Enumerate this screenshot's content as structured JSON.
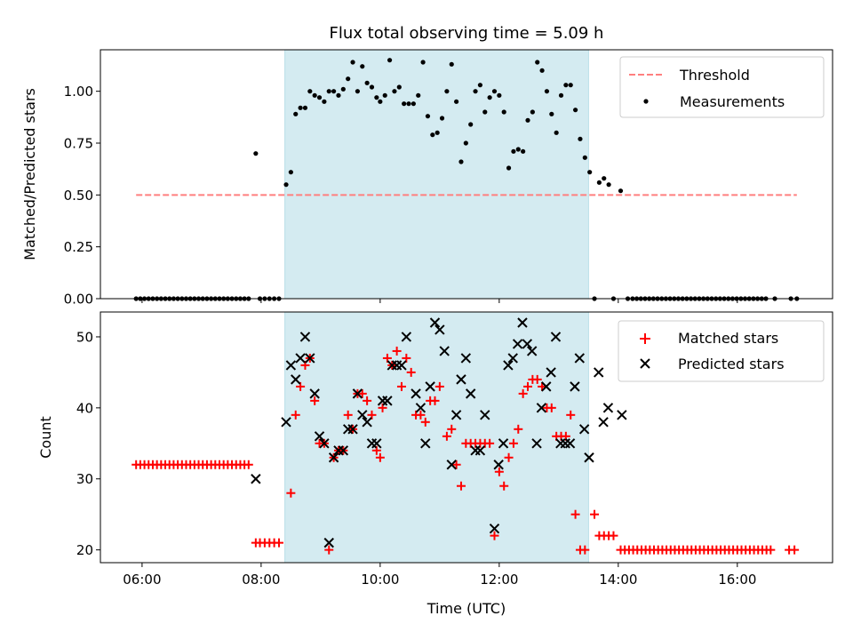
{
  "figure": {
    "title": "Flux total observing time = 5.09 h",
    "xlabel": "Time (UTC)",
    "x_ticks": [
      "06:00",
      "08:00",
      "10:00",
      "12:00",
      "14:00",
      "16:00"
    ],
    "x_tick_values": [
      6,
      8,
      10,
      12,
      14,
      16
    ],
    "x_range": [
      5.3,
      17.6
    ],
    "observing_window": [
      8.4,
      13.5
    ],
    "window_color": "#d4ebf1"
  },
  "chart_data": [
    {
      "type": "scatter",
      "ylabel": "Matched/Predicted stars",
      "ylim": [
        0,
        1.2
      ],
      "yticks": [
        "0.00",
        "0.25",
        "0.50",
        "0.75",
        "1.00"
      ],
      "ytick_values": [
        0,
        0.25,
        0.5,
        0.75,
        1.0
      ],
      "legend_position": "top-right",
      "legend": [
        {
          "label": "Threshold",
          "marker": "dashed-line",
          "color": "#ff7f7f"
        },
        {
          "label": "Measurements",
          "marker": "dot",
          "color": "#000000"
        }
      ],
      "threshold": {
        "y": 0.5,
        "x": [
          5.9,
          17.0
        ]
      },
      "measurements": [
        [
          5.9,
          0
        ],
        [
          5.97,
          0
        ],
        [
          6.04,
          0
        ],
        [
          6.11,
          0
        ],
        [
          6.18,
          0
        ],
        [
          6.25,
          0
        ],
        [
          6.32,
          0
        ],
        [
          6.39,
          0
        ],
        [
          6.46,
          0
        ],
        [
          6.53,
          0
        ],
        [
          6.6,
          0
        ],
        [
          6.67,
          0
        ],
        [
          6.74,
          0
        ],
        [
          6.81,
          0
        ],
        [
          6.88,
          0
        ],
        [
          6.95,
          0
        ],
        [
          7.02,
          0
        ],
        [
          7.09,
          0
        ],
        [
          7.16,
          0
        ],
        [
          7.23,
          0
        ],
        [
          7.3,
          0
        ],
        [
          7.37,
          0
        ],
        [
          7.44,
          0
        ],
        [
          7.51,
          0
        ],
        [
          7.58,
          0
        ],
        [
          7.65,
          0
        ],
        [
          7.72,
          0
        ],
        [
          7.79,
          0
        ],
        [
          7.91,
          0.7
        ],
        [
          7.98,
          0
        ],
        [
          8.06,
          0
        ],
        [
          8.14,
          0
        ],
        [
          8.22,
          0
        ],
        [
          8.3,
          0
        ],
        [
          8.42,
          0.55
        ],
        [
          8.5,
          0.61
        ],
        [
          8.58,
          0.89
        ],
        [
          8.66,
          0.92
        ],
        [
          8.74,
          0.92
        ],
        [
          8.82,
          1.0
        ],
        [
          8.9,
          0.98
        ],
        [
          8.98,
          0.97
        ],
        [
          9.06,
          0.95
        ],
        [
          9.14,
          1.0
        ],
        [
          9.22,
          1.0
        ],
        [
          9.3,
          0.98
        ],
        [
          9.38,
          1.01
        ],
        [
          9.46,
          1.06
        ],
        [
          9.54,
          1.14
        ],
        [
          9.62,
          1.0
        ],
        [
          9.7,
          1.12
        ],
        [
          9.78,
          1.04
        ],
        [
          9.86,
          1.02
        ],
        [
          9.94,
          0.97
        ],
        [
          10.0,
          0.95
        ],
        [
          10.08,
          0.98
        ],
        [
          10.16,
          1.15
        ],
        [
          10.24,
          1.0
        ],
        [
          10.32,
          1.02
        ],
        [
          10.4,
          0.94
        ],
        [
          10.48,
          0.94
        ],
        [
          10.56,
          0.94
        ],
        [
          10.64,
          0.98
        ],
        [
          10.72,
          1.14
        ],
        [
          10.8,
          0.88
        ],
        [
          10.88,
          0.79
        ],
        [
          10.96,
          0.8
        ],
        [
          11.04,
          0.87
        ],
        [
          11.12,
          1.0
        ],
        [
          11.2,
          1.13
        ],
        [
          11.28,
          0.95
        ],
        [
          11.36,
          0.66
        ],
        [
          11.44,
          0.75
        ],
        [
          11.52,
          0.84
        ],
        [
          11.6,
          1.0
        ],
        [
          11.68,
          1.03
        ],
        [
          11.76,
          0.9
        ],
        [
          11.84,
          0.97
        ],
        [
          11.92,
          1.0
        ],
        [
          12.0,
          0.98
        ],
        [
          12.08,
          0.9
        ],
        [
          12.16,
          0.63
        ],
        [
          12.24,
          0.71
        ],
        [
          12.32,
          0.72
        ],
        [
          12.4,
          0.71
        ],
        [
          12.48,
          0.86
        ],
        [
          12.56,
          0.9
        ],
        [
          12.64,
          1.14
        ],
        [
          12.72,
          1.1
        ],
        [
          12.8,
          1.0
        ],
        [
          12.88,
          0.89
        ],
        [
          12.96,
          0.8
        ],
        [
          13.04,
          0.98
        ],
        [
          13.12,
          1.03
        ],
        [
          13.2,
          1.03
        ],
        [
          13.28,
          0.91
        ],
        [
          13.36,
          0.77
        ],
        [
          13.44,
          0.68
        ],
        [
          13.52,
          0.61
        ],
        [
          13.6,
          0.0
        ],
        [
          13.68,
          0.56
        ],
        [
          13.76,
          0.58
        ],
        [
          13.84,
          0.55
        ],
        [
          14.04,
          0.52
        ],
        [
          13.92,
          0
        ],
        [
          14.16,
          0
        ],
        [
          14.24,
          0
        ],
        [
          14.31,
          0
        ],
        [
          14.38,
          0
        ],
        [
          14.45,
          0
        ],
        [
          14.52,
          0
        ],
        [
          14.59,
          0
        ],
        [
          14.66,
          0
        ],
        [
          14.73,
          0
        ],
        [
          14.8,
          0
        ],
        [
          14.87,
          0
        ],
        [
          14.94,
          0
        ],
        [
          15.01,
          0
        ],
        [
          15.08,
          0
        ],
        [
          15.15,
          0
        ],
        [
          15.22,
          0
        ],
        [
          15.29,
          0
        ],
        [
          15.36,
          0
        ],
        [
          15.43,
          0
        ],
        [
          15.5,
          0
        ],
        [
          15.57,
          0
        ],
        [
          15.64,
          0
        ],
        [
          15.71,
          0
        ],
        [
          15.78,
          0
        ],
        [
          15.85,
          0
        ],
        [
          15.92,
          0
        ],
        [
          15.99,
          0
        ],
        [
          16.06,
          0
        ],
        [
          16.13,
          0
        ],
        [
          16.2,
          0
        ],
        [
          16.27,
          0
        ],
        [
          16.34,
          0
        ],
        [
          16.41,
          0
        ],
        [
          16.48,
          0
        ],
        [
          16.63,
          0
        ],
        [
          16.9,
          0
        ],
        [
          17.0,
          0
        ]
      ]
    },
    {
      "type": "scatter",
      "ylabel": "Count",
      "ylim": [
        18.2,
        53.5
      ],
      "yticks": [
        "20",
        "30",
        "40",
        "50"
      ],
      "ytick_values": [
        20,
        30,
        40,
        50
      ],
      "legend_position": "top-right",
      "legend": [
        {
          "label": "Matched stars",
          "marker": "plus",
          "color": "#ff0000"
        },
        {
          "label": "Predicted stars",
          "marker": "x",
          "color": "#000000"
        }
      ],
      "matched": [
        [
          5.9,
          32
        ],
        [
          5.97,
          32
        ],
        [
          6.04,
          32
        ],
        [
          6.11,
          32
        ],
        [
          6.18,
          32
        ],
        [
          6.25,
          32
        ],
        [
          6.32,
          32
        ],
        [
          6.39,
          32
        ],
        [
          6.46,
          32
        ],
        [
          6.53,
          32
        ],
        [
          6.6,
          32
        ],
        [
          6.67,
          32
        ],
        [
          6.74,
          32
        ],
        [
          6.81,
          32
        ],
        [
          6.88,
          32
        ],
        [
          6.95,
          32
        ],
        [
          7.02,
          32
        ],
        [
          7.09,
          32
        ],
        [
          7.16,
          32
        ],
        [
          7.23,
          32
        ],
        [
          7.3,
          32
        ],
        [
          7.37,
          32
        ],
        [
          7.44,
          32
        ],
        [
          7.51,
          32
        ],
        [
          7.58,
          32
        ],
        [
          7.65,
          32
        ],
        [
          7.72,
          32
        ],
        [
          7.79,
          32
        ],
        [
          7.91,
          21
        ],
        [
          7.98,
          21
        ],
        [
          8.06,
          21
        ],
        [
          8.14,
          21
        ],
        [
          8.22,
          21
        ],
        [
          8.3,
          21
        ],
        [
          8.5,
          28
        ],
        [
          8.58,
          39
        ],
        [
          8.66,
          43
        ],
        [
          8.74,
          46
        ],
        [
          8.82,
          47
        ],
        [
          8.9,
          41
        ],
        [
          8.98,
          35
        ],
        [
          9.06,
          35
        ],
        [
          9.14,
          20
        ],
        [
          9.22,
          33
        ],
        [
          9.3,
          34
        ],
        [
          9.38,
          34
        ],
        [
          9.46,
          39
        ],
        [
          9.54,
          37
        ],
        [
          9.62,
          42
        ],
        [
          9.7,
          42
        ],
        [
          9.78,
          41
        ],
        [
          9.86,
          39
        ],
        [
          9.94,
          34
        ],
        [
          10.0,
          33
        ],
        [
          10.04,
          40
        ],
        [
          10.12,
          47
        ],
        [
          10.2,
          46
        ],
        [
          10.28,
          48
        ],
        [
          10.36,
          43
        ],
        [
          10.44,
          47
        ],
        [
          10.52,
          45
        ],
        [
          10.6,
          39
        ],
        [
          10.68,
          39
        ],
        [
          10.76,
          38
        ],
        [
          10.84,
          41
        ],
        [
          10.92,
          41
        ],
        [
          11.0,
          43
        ],
        [
          11.12,
          36
        ],
        [
          11.2,
          37
        ],
        [
          11.28,
          32
        ],
        [
          11.36,
          29
        ],
        [
          11.44,
          35
        ],
        [
          11.52,
          35
        ],
        [
          11.6,
          35
        ],
        [
          11.68,
          35
        ],
        [
          11.76,
          35
        ],
        [
          11.84,
          35
        ],
        [
          11.92,
          22
        ],
        [
          12.0,
          31
        ],
        [
          12.08,
          29
        ],
        [
          12.16,
          33
        ],
        [
          12.24,
          35
        ],
        [
          12.32,
          37
        ],
        [
          12.4,
          42
        ],
        [
          12.48,
          43
        ],
        [
          12.56,
          44
        ],
        [
          12.64,
          44
        ],
        [
          12.72,
          43
        ],
        [
          12.8,
          40
        ],
        [
          12.88,
          40
        ],
        [
          12.96,
          36
        ],
        [
          13.04,
          36
        ],
        [
          13.12,
          36
        ],
        [
          13.2,
          39
        ],
        [
          13.28,
          25
        ],
        [
          13.36,
          20
        ],
        [
          13.44,
          20
        ],
        [
          13.6,
          25
        ],
        [
          13.68,
          22
        ],
        [
          13.76,
          22
        ],
        [
          13.84,
          22
        ],
        [
          13.92,
          22
        ],
        [
          14.04,
          20
        ],
        [
          14.11,
          20
        ],
        [
          14.18,
          20
        ],
        [
          14.25,
          20
        ],
        [
          14.32,
          20
        ],
        [
          14.39,
          20
        ],
        [
          14.46,
          20
        ],
        [
          14.53,
          20
        ],
        [
          14.6,
          20
        ],
        [
          14.67,
          20
        ],
        [
          14.74,
          20
        ],
        [
          14.81,
          20
        ],
        [
          14.88,
          20
        ],
        [
          14.95,
          20
        ],
        [
          15.02,
          20
        ],
        [
          15.09,
          20
        ],
        [
          15.16,
          20
        ],
        [
          15.23,
          20
        ],
        [
          15.3,
          20
        ],
        [
          15.37,
          20
        ],
        [
          15.44,
          20
        ],
        [
          15.51,
          20
        ],
        [
          15.58,
          20
        ],
        [
          15.65,
          20
        ],
        [
          15.72,
          20
        ],
        [
          15.79,
          20
        ],
        [
          15.86,
          20
        ],
        [
          15.93,
          20
        ],
        [
          16.0,
          20
        ],
        [
          16.07,
          20
        ],
        [
          16.14,
          20
        ],
        [
          16.21,
          20
        ],
        [
          16.28,
          20
        ],
        [
          16.35,
          20
        ],
        [
          16.42,
          20
        ],
        [
          16.49,
          20
        ],
        [
          16.56,
          20
        ],
        [
          16.87,
          20
        ],
        [
          16.96,
          20
        ]
      ],
      "predicted": [
        [
          7.91,
          30
        ],
        [
          8.42,
          38
        ],
        [
          8.5,
          46
        ],
        [
          8.58,
          44
        ],
        [
          8.66,
          47
        ],
        [
          8.74,
          50
        ],
        [
          8.82,
          47
        ],
        [
          8.9,
          42
        ],
        [
          8.98,
          36
        ],
        [
          9.06,
          35
        ],
        [
          9.14,
          21
        ],
        [
          9.22,
          33
        ],
        [
          9.3,
          34
        ],
        [
          9.38,
          34
        ],
        [
          9.46,
          37
        ],
        [
          9.54,
          37
        ],
        [
          9.62,
          42
        ],
        [
          9.7,
          39
        ],
        [
          9.78,
          38
        ],
        [
          9.86,
          35
        ],
        [
          9.94,
          35
        ],
        [
          10.04,
          41
        ],
        [
          10.12,
          41
        ],
        [
          10.2,
          46
        ],
        [
          10.28,
          46
        ],
        [
          10.36,
          46
        ],
        [
          10.44,
          50
        ],
        [
          10.6,
          42
        ],
        [
          10.68,
          40
        ],
        [
          10.76,
          35
        ],
        [
          10.84,
          43
        ],
        [
          10.92,
          52
        ],
        [
          11.0,
          51
        ],
        [
          11.08,
          48
        ],
        [
          11.2,
          32
        ],
        [
          11.28,
          39
        ],
        [
          11.36,
          44
        ],
        [
          11.44,
          47
        ],
        [
          11.52,
          42
        ],
        [
          11.6,
          34
        ],
        [
          11.68,
          34
        ],
        [
          11.76,
          39
        ],
        [
          11.92,
          23
        ],
        [
          11.99,
          32
        ],
        [
          12.07,
          35
        ],
        [
          12.15,
          46
        ],
        [
          12.23,
          47
        ],
        [
          12.31,
          49
        ],
        [
          12.39,
          52
        ],
        [
          12.47,
          49
        ],
        [
          12.55,
          48
        ],
        [
          12.63,
          35
        ],
        [
          12.71,
          40
        ],
        [
          12.79,
          43
        ],
        [
          12.87,
          45
        ],
        [
          12.95,
          50
        ],
        [
          13.03,
          35
        ],
        [
          13.11,
          35
        ],
        [
          13.19,
          35
        ],
        [
          13.27,
          43
        ],
        [
          13.35,
          47
        ],
        [
          13.43,
          37
        ],
        [
          13.51,
          33
        ],
        [
          13.67,
          45
        ],
        [
          13.75,
          38
        ],
        [
          13.83,
          40
        ],
        [
          14.06,
          39
        ]
      ]
    }
  ]
}
